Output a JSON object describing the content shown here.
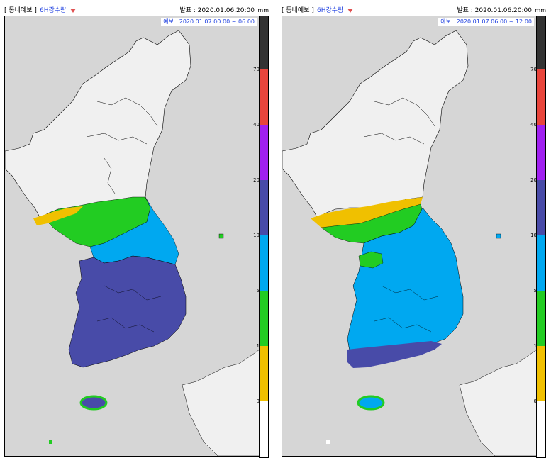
{
  "panels": [
    {
      "tag": "[ 동네예보 ]",
      "product": "6H강수량",
      "issue": "발표 : 2020.01.06.20:00",
      "valid": "예보 : 2020.01.07.00:00 ~ 06:00",
      "unit": "mm"
    },
    {
      "tag": "[ 동네예보 ]",
      "product": "6H강수량",
      "issue": "발표 : 2020.01.06.20:00",
      "valid": "예보 : 2020.01.07.06:00 ~ 12:00",
      "unit": "mm"
    }
  ],
  "legend": {
    "labels": [
      "70",
      "40",
      "20",
      "10",
      "5",
      "1",
      "0"
    ],
    "colors": {
      "c70": "#333333",
      "c40": "#e8453c",
      "c20": "#a020f0",
      "c10": "#484ba8",
      "c5": "#00a8f0",
      "c1": "#22cc22",
      "c0": "#f0c000",
      "none": "#ffffff"
    }
  },
  "map_colors": {
    "sea": "#d6d6d6",
    "land": "#f0f0f0",
    "border": "#000000"
  }
}
